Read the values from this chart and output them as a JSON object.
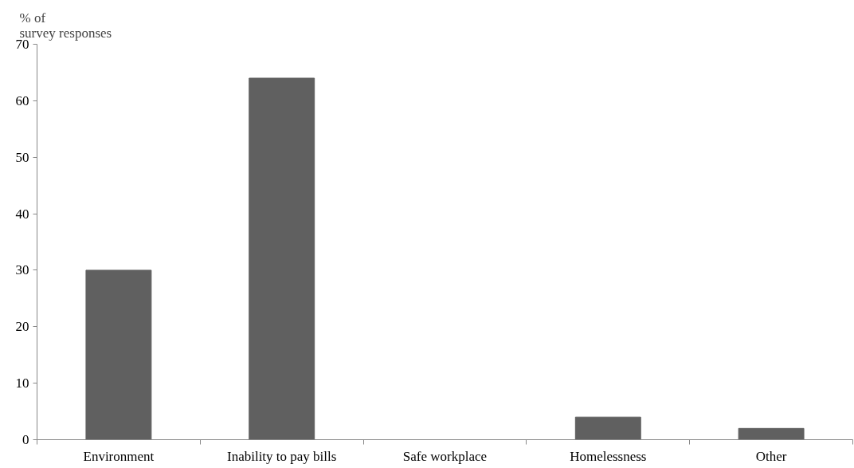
{
  "chart_data": {
    "type": "bar",
    "ylabel": "% of survey responses",
    "categories": [
      "Environment",
      "Inability to pay bills",
      "Safe workplace",
      "Homelessness",
      "Other"
    ],
    "values": [
      30,
      64,
      0,
      4,
      2
    ],
    "color": "#606060",
    "ylim": [
      0,
      70
    ],
    "yticks": [
      0,
      10,
      20,
      30,
      40,
      50,
      60,
      70
    ],
    "grid": false
  }
}
